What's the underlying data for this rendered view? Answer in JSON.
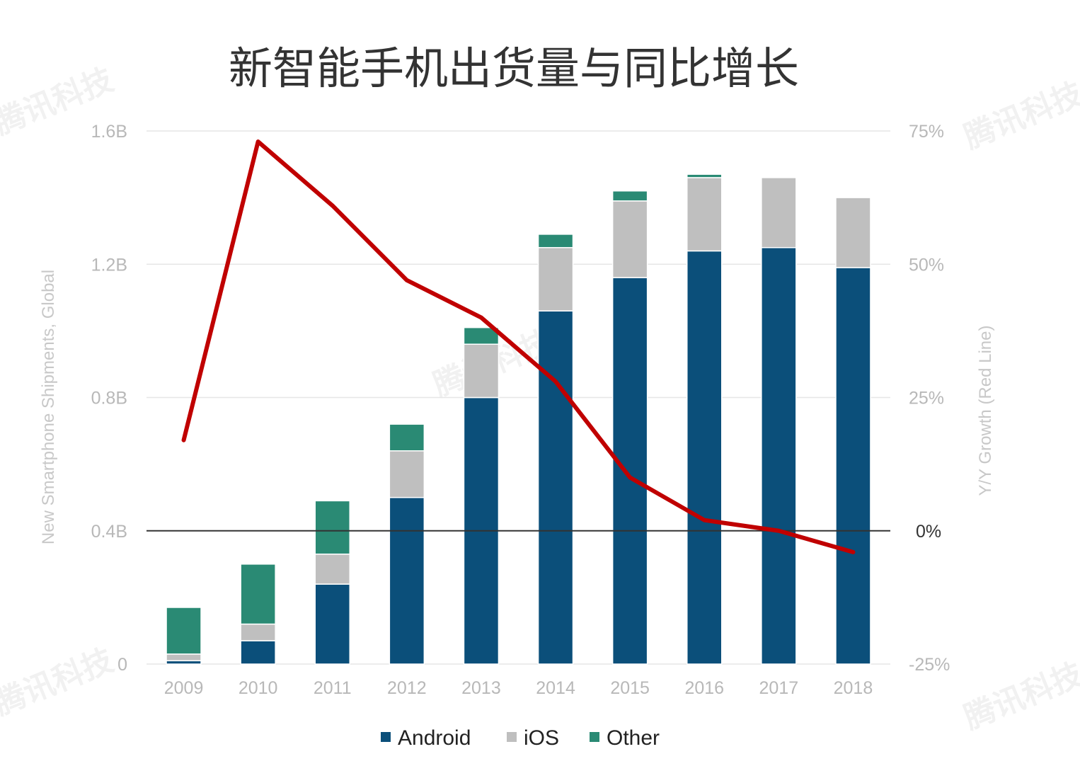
{
  "chart_data": {
    "type": "bar",
    "stacked": true,
    "title": "新智能手机出货量与同比增长",
    "ylabel": "New Smartphone Shipments, Global",
    "y2label": "Y/Y Growth (Red Line)",
    "categories": [
      "2009",
      "2010",
      "2011",
      "2012",
      "2013",
      "2014",
      "2015",
      "2016",
      "2017",
      "2018"
    ],
    "ylim": [
      0,
      1.6
    ],
    "yticks": [
      "0",
      "0.4B",
      "0.8B",
      "1.2B",
      "1.6B"
    ],
    "y2lim": [
      -25,
      75
    ],
    "y2ticks": [
      "-25%",
      "0%",
      "25%",
      "50%",
      "75%"
    ],
    "series": [
      {
        "name": "Android",
        "color": "#0b4f7a",
        "values": [
          0.01,
          0.07,
          0.24,
          0.5,
          0.8,
          1.06,
          1.16,
          1.24,
          1.25,
          1.19
        ]
      },
      {
        "name": "iOS",
        "color": "#bfbfbf",
        "values": [
          0.02,
          0.05,
          0.09,
          0.14,
          0.16,
          0.19,
          0.23,
          0.22,
          0.21,
          0.21
        ]
      },
      {
        "name": "Other",
        "color": "#2a8a74",
        "values": [
          0.14,
          0.18,
          0.16,
          0.08,
          0.05,
          0.04,
          0.03,
          0.01,
          0.0,
          0.0
        ]
      }
    ],
    "line": {
      "name": "Y/Y Growth",
      "color": "#c00000",
      "axis": "right",
      "values": [
        17,
        73,
        61,
        47,
        40,
        28,
        10,
        2,
        0,
        -4
      ]
    },
    "legend": {
      "position": "bottom",
      "entries": [
        "Android",
        "iOS",
        "Other"
      ]
    },
    "grid": true
  },
  "watermark": "腾讯科技"
}
